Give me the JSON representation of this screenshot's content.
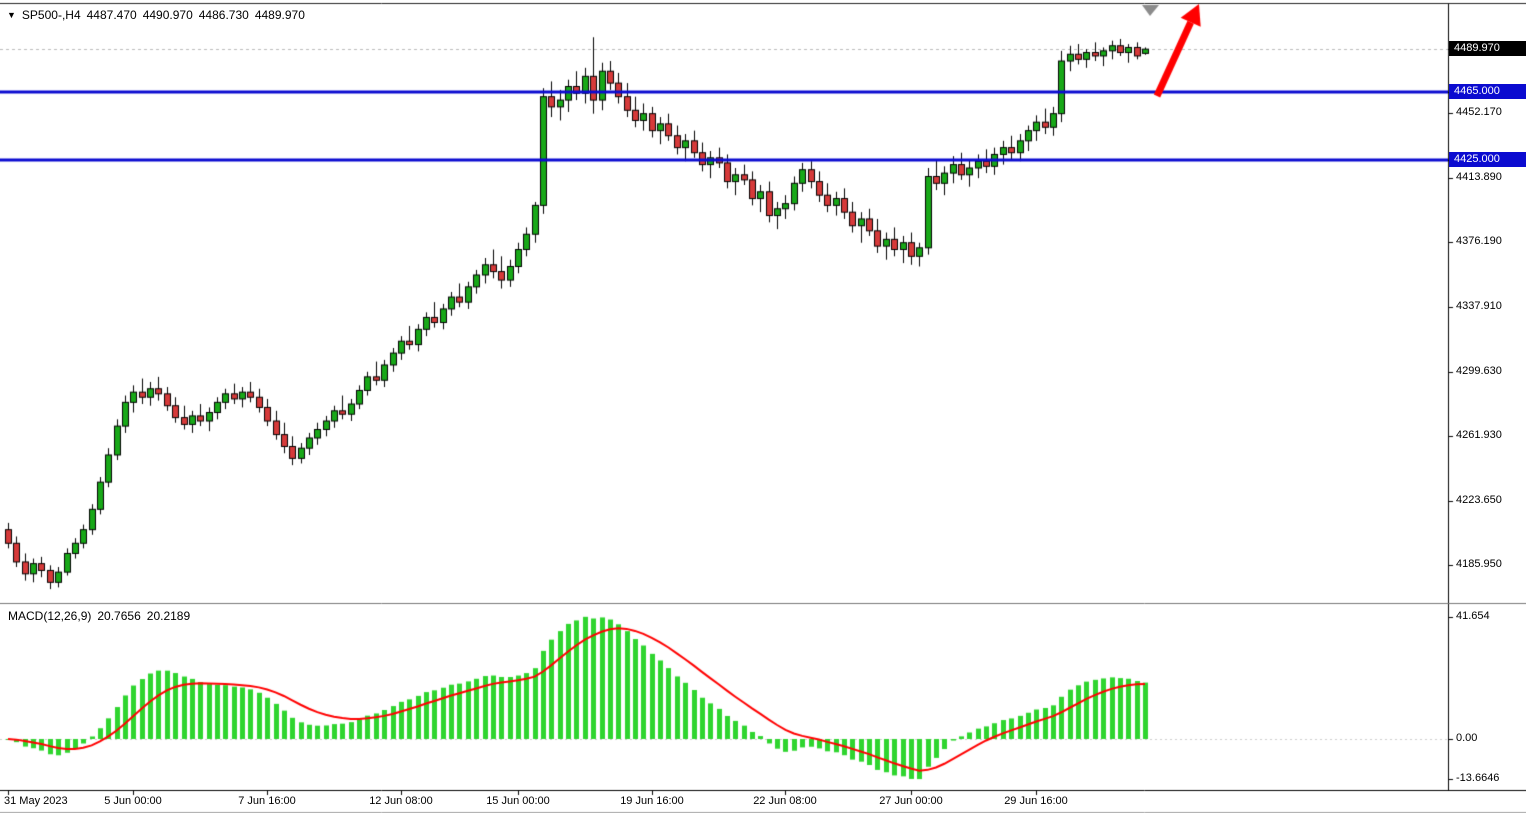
{
  "header": {
    "symbol_period": "SP500-,H4",
    "open": "4487.470",
    "high": "4490.970",
    "low": "4486.730",
    "close": "4489.970"
  },
  "macd_label": {
    "name": "MACD(12,26,9)",
    "main_value": "20.7656",
    "signal_value": "20.2189"
  },
  "chart_data": {
    "type": "candlestick",
    "symbol": "SP500-",
    "timeframe": "H4",
    "title": "SP500-,H4 4487.470 4490.970 4486.730 4489.970",
    "y_axis": {
      "price_top": 4516,
      "price_bottom": 4165,
      "ticks": [
        {
          "v": 4452.17,
          "t": "4452.170"
        },
        {
          "v": 4413.89,
          "t": "4413.890"
        },
        {
          "v": 4376.19,
          "t": "4376.190"
        },
        {
          "v": 4337.91,
          "t": "4337.910"
        },
        {
          "v": 4299.63,
          "t": "4299.630"
        },
        {
          "v": 4261.93,
          "t": "4261.930"
        },
        {
          "v": 4223.65,
          "t": "4223.650"
        },
        {
          "v": 4185.95,
          "t": "4185.950"
        }
      ]
    },
    "x_axis": {
      "labels": [
        {
          "i": 0,
          "t": "31 May 2023"
        },
        {
          "i": 15,
          "t": "5 Jun 00:00"
        },
        {
          "i": 31,
          "t": "7 Jun 16:00"
        },
        {
          "i": 47,
          "t": "12 Jun 08:00"
        },
        {
          "i": 61,
          "t": "15 Jun 00:00"
        },
        {
          "i": 77,
          "t": "19 Jun 16:00"
        },
        {
          "i": 93,
          "t": "22 Jun 08:00"
        },
        {
          "i": 108,
          "t": "27 Jun 00:00"
        },
        {
          "i": 123,
          "t": "29 Jun 16:00"
        }
      ]
    },
    "current_price": {
      "value": 4489.97,
      "label": "4489.970"
    },
    "levels": [
      {
        "value": 4465.0,
        "label": "4465.000"
      },
      {
        "value": 4425.0,
        "label": "4425.000"
      }
    ],
    "macd": {
      "params": "12,26,9",
      "main_value": 20.7656,
      "signal_value": 20.2189,
      "hist_max": 41.654,
      "hist_min": -13.6646,
      "axis_labels": [
        {
          "v": 41.654,
          "t": "41.654"
        },
        {
          "v": 0,
          "t": "0.00"
        },
        {
          "v": -13.6646,
          "t": "-13.6646"
        }
      ]
    },
    "colors": {
      "up": "#18a818",
      "down": "#d63a3a",
      "wick": "#000000",
      "hist": "#2fd52f",
      "signal": "#ff0000",
      "level_line": "#0b0bd0",
      "level_badge_bg": "#0b0bd0",
      "current_badge_bg": "#000000",
      "axis_text": "#000000",
      "arrow": "#ff0000",
      "marker_gray": "#8b8b8b"
    },
    "candles": [
      [
        4207,
        4211,
        4196,
        4199
      ],
      [
        4199,
        4203,
        4185,
        4188
      ],
      [
        4188,
        4193,
        4177,
        4181
      ],
      [
        4181,
        4190,
        4176,
        4187
      ],
      [
        4187,
        4191,
        4179,
        4183
      ],
      [
        4183,
        4186,
        4172,
        4176
      ],
      [
        4176,
        4185,
        4173,
        4182
      ],
      [
        4182,
        4196,
        4180,
        4193
      ],
      [
        4193,
        4202,
        4190,
        4199
      ],
      [
        4199,
        4210,
        4196,
        4207
      ],
      [
        4207,
        4222,
        4204,
        4219
      ],
      [
        4219,
        4238,
        4216,
        4235
      ],
      [
        4235,
        4255,
        4232,
        4251
      ],
      [
        4251,
        4272,
        4248,
        4268
      ],
      [
        4268,
        4286,
        4264,
        4282
      ],
      [
        4282,
        4292,
        4276,
        4288
      ],
      [
        4288,
        4296,
        4281,
        4285
      ],
      [
        4285,
        4294,
        4280,
        4290
      ],
      [
        4290,
        4297,
        4283,
        4287
      ],
      [
        4287,
        4291,
        4277,
        4280
      ],
      [
        4280,
        4285,
        4270,
        4273
      ],
      [
        4273,
        4280,
        4266,
        4269
      ],
      [
        4269,
        4277,
        4264,
        4274
      ],
      [
        4274,
        4281,
        4268,
        4271
      ],
      [
        4271,
        4279,
        4265,
        4276
      ],
      [
        4276,
        4285,
        4272,
        4282
      ],
      [
        4282,
        4290,
        4278,
        4287
      ],
      [
        4287,
        4293,
        4281,
        4284
      ],
      [
        4284,
        4291,
        4279,
        4288
      ],
      [
        4288,
        4294,
        4282,
        4285
      ],
      [
        4285,
        4290,
        4276,
        4279
      ],
      [
        4279,
        4284,
        4268,
        4271
      ],
      [
        4271,
        4277,
        4260,
        4263
      ],
      [
        4263,
        4270,
        4252,
        4256
      ],
      [
        4256,
        4262,
        4245,
        4249
      ],
      [
        4249,
        4258,
        4246,
        4255
      ],
      [
        4255,
        4264,
        4251,
        4261
      ],
      [
        4261,
        4270,
        4257,
        4266
      ],
      [
        4266,
        4274,
        4262,
        4271
      ],
      [
        4271,
        4280,
        4267,
        4277
      ],
      [
        4277,
        4286,
        4272,
        4275
      ],
      [
        4275,
        4284,
        4271,
        4281
      ],
      [
        4281,
        4292,
        4278,
        4289
      ],
      [
        4289,
        4300,
        4286,
        4297
      ],
      [
        4297,
        4306,
        4292,
        4295
      ],
      [
        4295,
        4307,
        4291,
        4304
      ],
      [
        4304,
        4314,
        4300,
        4311
      ],
      [
        4311,
        4321,
        4307,
        4318
      ],
      [
        4318,
        4327,
        4313,
        4316
      ],
      [
        4316,
        4328,
        4312,
        4325
      ],
      [
        4325,
        4335,
        4321,
        4332
      ],
      [
        4332,
        4341,
        4326,
        4329
      ],
      [
        4329,
        4340,
        4325,
        4337
      ],
      [
        4337,
        4347,
        4333,
        4344
      ],
      [
        4344,
        4352,
        4338,
        4341
      ],
      [
        4341,
        4353,
        4337,
        4350
      ],
      [
        4350,
        4360,
        4346,
        4357
      ],
      [
        4357,
        4367,
        4352,
        4363
      ],
      [
        4363,
        4372,
        4355,
        4359
      ],
      [
        4359,
        4368,
        4349,
        4354
      ],
      [
        4354,
        4366,
        4350,
        4362
      ],
      [
        4362,
        4376,
        4358,
        4372
      ],
      [
        4372,
        4385,
        4368,
        4381
      ],
      [
        4381,
        4400,
        4376,
        4398
      ],
      [
        4398,
        4467,
        4393,
        4462
      ],
      [
        4462,
        4471,
        4450,
        4456
      ],
      [
        4456,
        4466,
        4448,
        4460
      ],
      [
        4460,
        4472,
        4453,
        4468
      ],
      [
        4468,
        4477,
        4460,
        4464
      ],
      [
        4464,
        4479,
        4458,
        4474
      ],
      [
        4474,
        4497,
        4452,
        4460
      ],
      [
        4460,
        4482,
        4454,
        4477
      ],
      [
        4477,
        4483,
        4466,
        4470
      ],
      [
        4470,
        4476,
        4458,
        4462
      ],
      [
        4462,
        4470,
        4450,
        4454
      ],
      [
        4454,
        4462,
        4444,
        4448
      ],
      [
        4448,
        4458,
        4442,
        4452
      ],
      [
        4452,
        4456,
        4438,
        4442
      ],
      [
        4442,
        4450,
        4434,
        4446
      ],
      [
        4446,
        4452,
        4436,
        4439
      ],
      [
        4439,
        4445,
        4428,
        4432
      ],
      [
        4432,
        4440,
        4424,
        4436
      ],
      [
        4436,
        4442,
        4426,
        4429
      ],
      [
        4429,
        4435,
        4418,
        4422
      ],
      [
        4422,
        4430,
        4414,
        4426
      ],
      [
        4426,
        4432,
        4420,
        4423
      ],
      [
        4423,
        4428,
        4408,
        4412
      ],
      [
        4412,
        4420,
        4404,
        4416
      ],
      [
        4416,
        4422,
        4410,
        4413
      ],
      [
        4413,
        4418,
        4398,
        4402
      ],
      [
        4402,
        4410,
        4394,
        4406
      ],
      [
        4406,
        4412,
        4388,
        4392
      ],
      [
        4392,
        4400,
        4384,
        4396
      ],
      [
        4396,
        4404,
        4390,
        4399
      ],
      [
        4399,
        4415,
        4395,
        4411
      ],
      [
        4411,
        4423,
        4406,
        4419
      ],
      [
        4419,
        4424,
        4408,
        4412
      ],
      [
        4412,
        4418,
        4400,
        4404
      ],
      [
        4404,
        4411,
        4394,
        4398
      ],
      [
        4398,
        4406,
        4392,
        4402
      ],
      [
        4402,
        4408,
        4390,
        4394
      ],
      [
        4394,
        4400,
        4382,
        4386
      ],
      [
        4386,
        4394,
        4376,
        4390
      ],
      [
        4390,
        4396,
        4380,
        4383
      ],
      [
        4383,
        4390,
        4370,
        4374
      ],
      [
        4374,
        4382,
        4366,
        4378
      ],
      [
        4378,
        4385,
        4368,
        4372
      ],
      [
        4372,
        4380,
        4364,
        4376
      ],
      [
        4376,
        4382,
        4363,
        4368
      ],
      [
        4368,
        4376,
        4362,
        4373
      ],
      [
        4373,
        4420,
        4369,
        4415
      ],
      [
        4415,
        4425,
        4407,
        4411
      ],
      [
        4411,
        4421,
        4404,
        4417
      ],
      [
        4417,
        4427,
        4411,
        4422
      ],
      [
        4422,
        4429,
        4413,
        4416
      ],
      [
        4416,
        4425,
        4409,
        4420
      ],
      [
        4420,
        4428,
        4414,
        4424
      ],
      [
        4424,
        4431,
        4417,
        4421
      ],
      [
        4421,
        4432,
        4416,
        4428
      ],
      [
        4428,
        4436,
        4422,
        4432
      ],
      [
        4432,
        4439,
        4425,
        4429
      ],
      [
        4429,
        4440,
        4424,
        4436
      ],
      [
        4436,
        4445,
        4430,
        4442
      ],
      [
        4442,
        4451,
        4436,
        4447
      ],
      [
        4447,
        4455,
        4440,
        4444
      ],
      [
        4444,
        4456,
        4439,
        4452
      ],
      [
        4452,
        4489,
        4447,
        4483
      ],
      [
        4483,
        4492,
        4477,
        4487
      ],
      [
        4487,
        4493,
        4481,
        4484
      ],
      [
        4484,
        4490,
        4479,
        4488
      ],
      [
        4488,
        4494,
        4483,
        4486
      ],
      [
        4486,
        4491,
        4480,
        4489
      ],
      [
        4489,
        4495,
        4484,
        4492
      ],
      [
        4492,
        4496,
        4486,
        4488
      ],
      [
        4488,
        4493,
        4482,
        4491
      ],
      [
        4491,
        4494,
        4484,
        4486
      ],
      [
        4487.5,
        4491,
        4486.7,
        4490
      ]
    ]
  }
}
